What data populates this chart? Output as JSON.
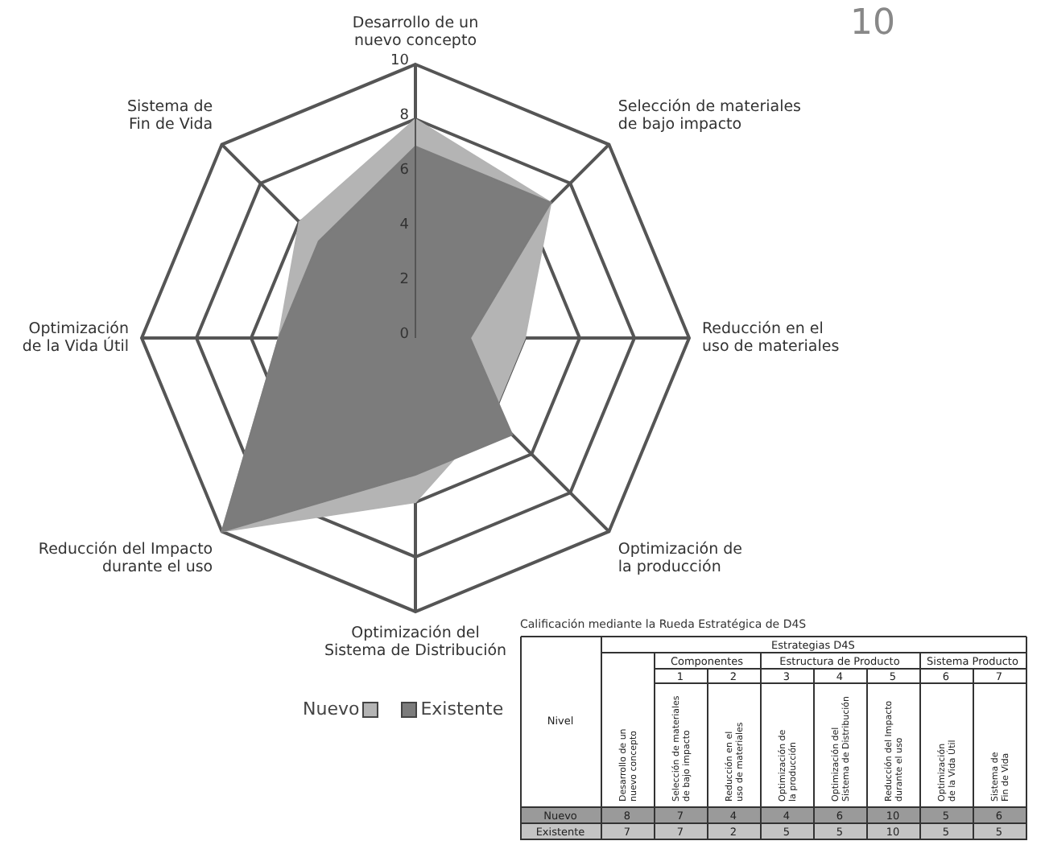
{
  "chart_data": [
    {
      "type": "radar",
      "categories": [
        "Desarrollo de un nuevo concepto",
        "Selección de materiales de bajo impacto",
        "Reducción en el uso de materiales",
        "Optimización de la producción",
        "Optimización del Sistema de Distribución",
        "Reducción del Impacto durante el uso",
        "Optimización de la Vida Útil",
        "Sistema de Fin de Vida"
      ],
      "series": [
        {
          "name": "Nuevo",
          "color": "#b4b4b4",
          "values": [
            8,
            7,
            4,
            4,
            6,
            10,
            5,
            6
          ]
        },
        {
          "name": "Existente",
          "color": "#7c7c7c",
          "values": [
            7,
            7,
            2,
            5,
            5,
            10,
            5,
            5
          ]
        }
      ],
      "ylim": [
        0,
        10
      ],
      "yticks": [
        0,
        2,
        4,
        6,
        8,
        10
      ],
      "grid": true,
      "legend": "bottom",
      "annotations": [
        "10"
      ]
    },
    {
      "type": "heatmap",
      "title": "Calificación mediante la Rueda Estratégica de D4S",
      "categories": [
        "Desarrollo de un nuevo concepto",
        "Selección de materiales de bajo impacto",
        "Reducción en el uso de materiales",
        "Optimización de la producción",
        "Optimización del Sistema de Distribución",
        "Reducción del Impacto durante el uso",
        "Optimización de la Vida Útil",
        "Sistema de Fin de Vida"
      ],
      "y_categories": [
        "Nuevo",
        "Existente"
      ],
      "data_labels": true,
      "cells": [
        [
          8,
          7,
          4,
          4,
          6,
          10,
          5,
          6
        ],
        [
          7,
          7,
          2,
          5,
          5,
          10,
          5,
          5
        ]
      ],
      "annotations": [
        "Estrategias D4S",
        "Componentes",
        "Estructura de Producto",
        "Sistema Producto",
        "Nivel",
        "1",
        "2",
        "3",
        "4",
        "5",
        "6",
        "7"
      ]
    }
  ]
}
